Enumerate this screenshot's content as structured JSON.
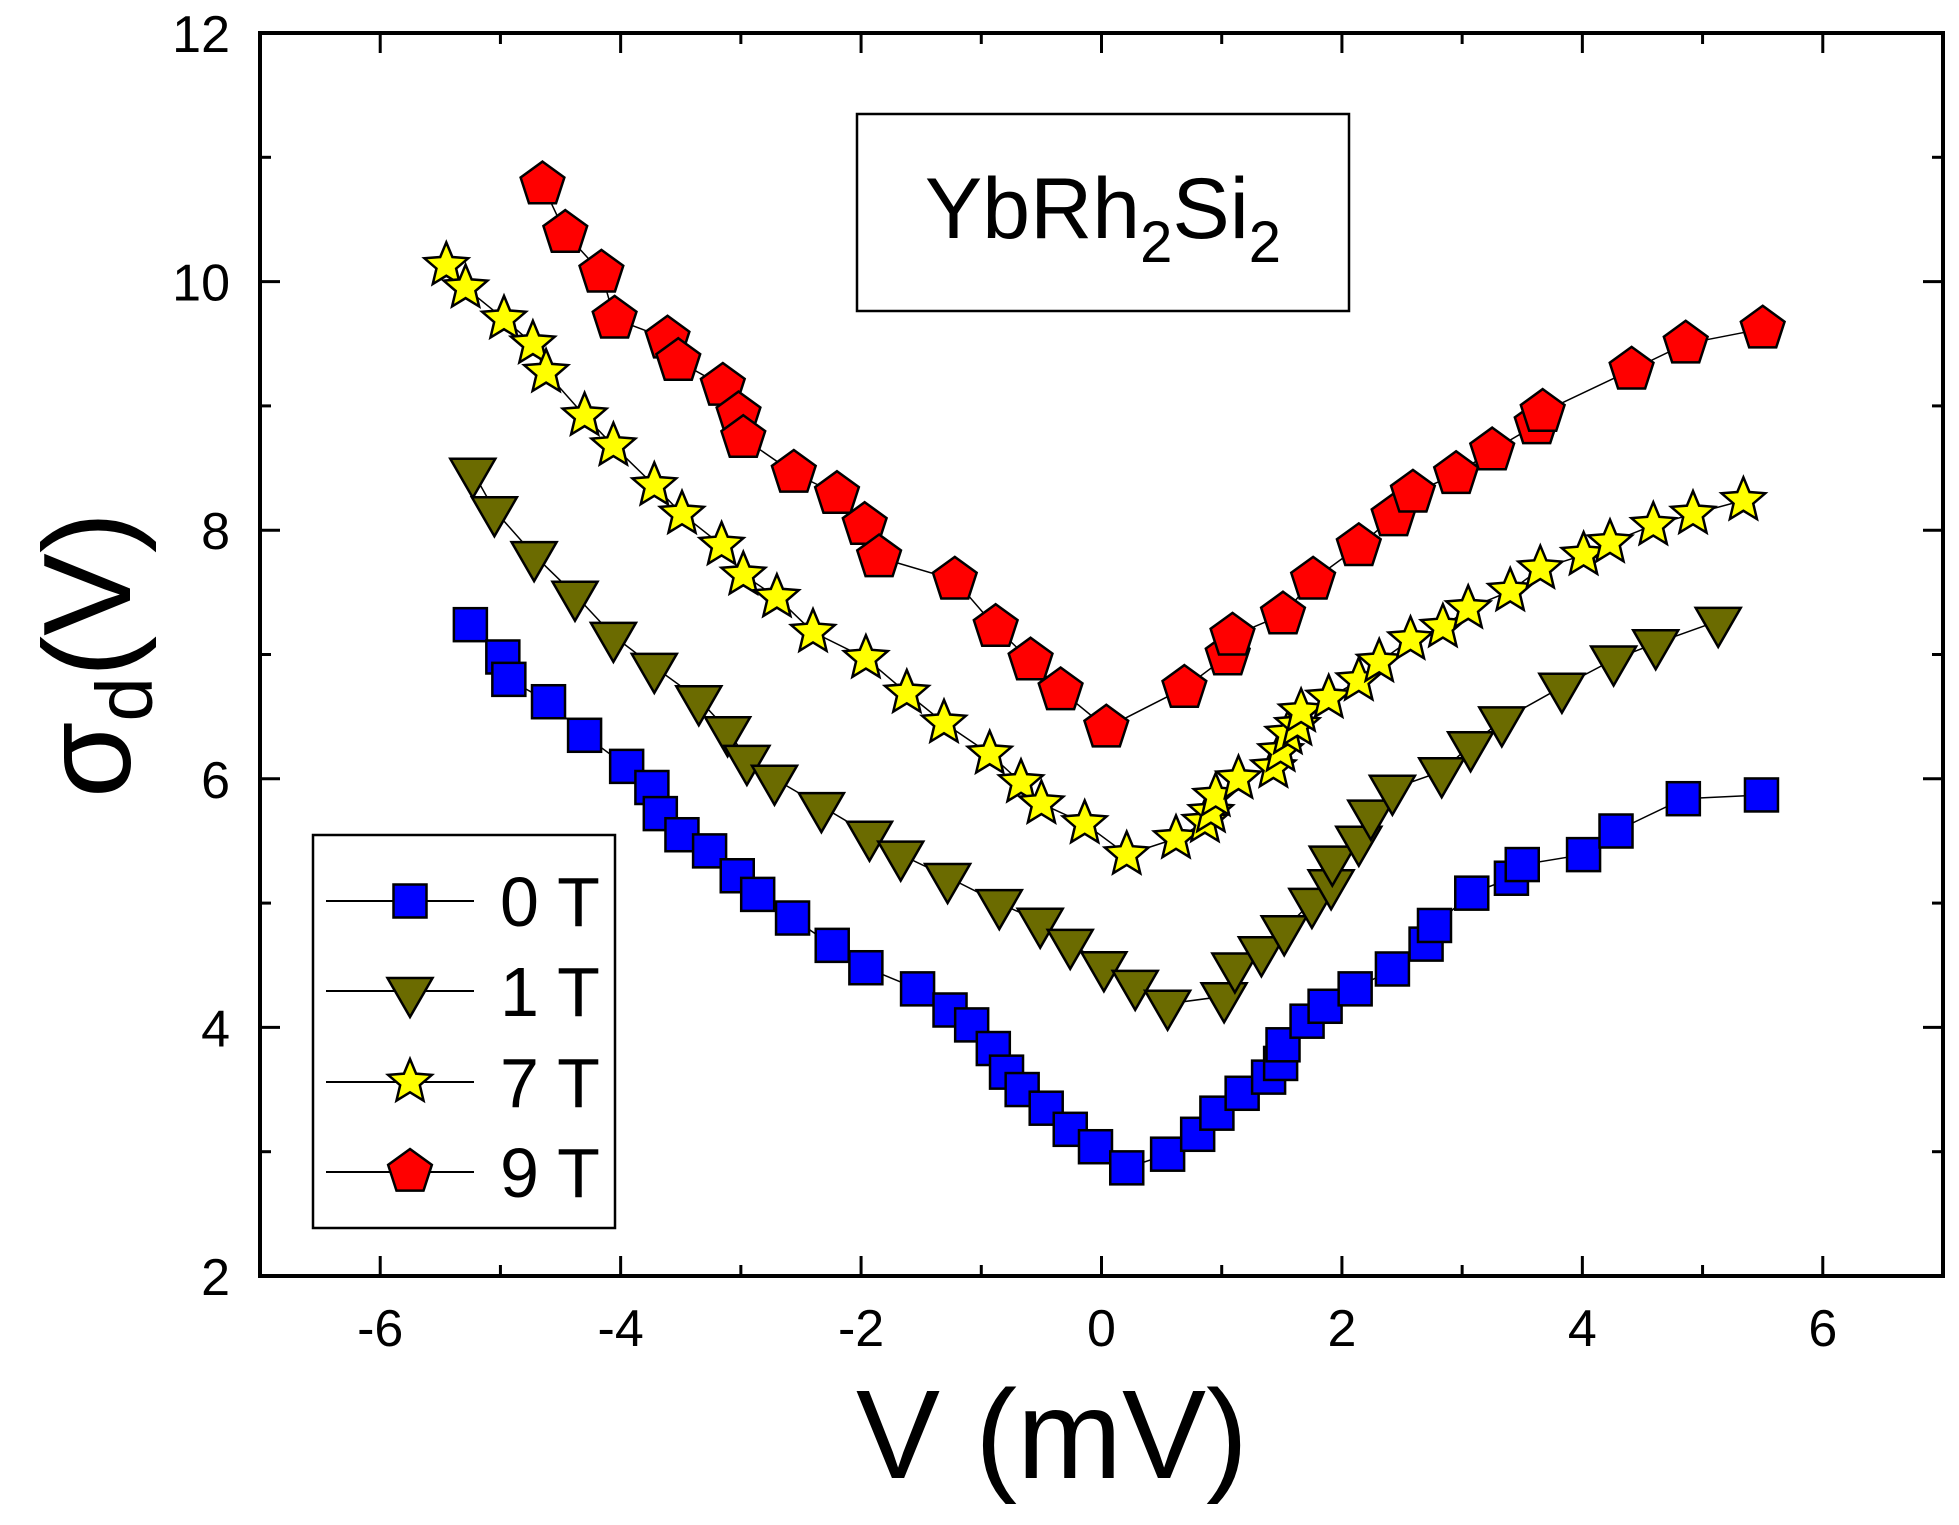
{
  "chart_data": {
    "type": "scatter",
    "title": "",
    "xlabel": "V (mV)",
    "ylabel": {
      "main": "σ",
      "sub": "d",
      "rest": "(V)"
    },
    "xlim": [
      -7,
      7
    ],
    "ylim": [
      2,
      12
    ],
    "xticks": [
      -6,
      -4,
      -2,
      0,
      2,
      4,
      6
    ],
    "yticks": [
      2,
      4,
      6,
      8,
      10,
      12
    ],
    "grid": false,
    "legend_position": "bottom-left",
    "annotation": {
      "main": "YbRh",
      "sub1": "2",
      "mid": "Si",
      "sub2": "2"
    },
    "series": [
      {
        "name": "0 T",
        "value": "0",
        "unit": "T",
        "marker": "square",
        "color": "#0000ff",
        "x": [
          -5.25,
          -4.98,
          -4.93,
          -4.6,
          -4.3,
          -3.95,
          -3.74,
          -3.67,
          -3.49,
          -3.26,
          -3.03,
          -2.86,
          -2.57,
          -2.24,
          -1.96,
          -1.53,
          -1.26,
          -1.08,
          -0.9,
          -0.79,
          -0.66,
          -0.46,
          -0.26,
          -0.05,
          0.21,
          0.55,
          0.8,
          0.96,
          1.17,
          1.39,
          1.49,
          1.51,
          1.71,
          1.86,
          2.11,
          2.42,
          2.7,
          2.77,
          3.08,
          3.41,
          3.5,
          4.01,
          4.28,
          4.84,
          5.49
        ],
        "y": [
          7.24,
          6.98,
          6.8,
          6.62,
          6.35,
          6.1,
          5.93,
          5.72,
          5.55,
          5.42,
          5.22,
          5.07,
          4.88,
          4.66,
          4.48,
          4.31,
          4.14,
          4.02,
          3.83,
          3.64,
          3.5,
          3.35,
          3.18,
          3.04,
          2.87,
          2.98,
          3.14,
          3.31,
          3.47,
          3.6,
          3.71,
          3.86,
          4.05,
          4.17,
          4.31,
          4.47,
          4.67,
          4.82,
          5.08,
          5.2,
          5.31,
          5.39,
          5.58,
          5.84,
          5.87
        ]
      },
      {
        "name": "1 T",
        "value": "1",
        "unit": "T",
        "marker": "triangle-down",
        "color": "#6b6b00",
        "x": [
          -5.23,
          -5.05,
          -4.72,
          -4.38,
          -4.06,
          -3.72,
          -3.35,
          -3.11,
          -2.95,
          -2.72,
          -2.33,
          -1.93,
          -1.67,
          -1.28,
          -0.85,
          -0.51,
          -0.26,
          0.02,
          0.28,
          0.55,
          1.02,
          1.11,
          1.33,
          1.52,
          1.75,
          1.91,
          1.92,
          2.14,
          2.24,
          2.42,
          2.83,
          3.07,
          3.33,
          3.83,
          4.26,
          4.61,
          5.13
        ],
        "y": [
          8.47,
          8.16,
          7.8,
          7.48,
          7.15,
          6.9,
          6.64,
          6.39,
          6.16,
          6.0,
          5.78,
          5.55,
          5.39,
          5.21,
          5.0,
          4.85,
          4.68,
          4.5,
          4.35,
          4.19,
          4.25,
          4.49,
          4.62,
          4.79,
          5.01,
          5.16,
          5.35,
          5.51,
          5.72,
          5.92,
          6.06,
          6.27,
          6.47,
          6.74,
          6.96,
          7.09,
          7.27
        ]
      },
      {
        "name": "7 T",
        "value": "7",
        "unit": "T",
        "marker": "star",
        "color": "#ffff00",
        "x": [
          -5.45,
          -5.29,
          -4.97,
          -4.73,
          -4.62,
          -4.3,
          -4.06,
          -3.72,
          -3.49,
          -3.16,
          -2.98,
          -2.7,
          -2.4,
          -1.96,
          -1.62,
          -1.31,
          -0.93,
          -0.67,
          -0.5,
          -0.14,
          0.21,
          0.62,
          0.86,
          0.91,
          0.95,
          1.14,
          1.43,
          1.49,
          1.55,
          1.63,
          1.66,
          1.89,
          2.14,
          2.31,
          2.57,
          2.84,
          3.05,
          3.4,
          3.65,
          4.01,
          4.23,
          4.59,
          4.92,
          5.34
        ],
        "y": [
          10.13,
          9.95,
          9.7,
          9.5,
          9.27,
          8.92,
          8.68,
          8.36,
          8.13,
          7.88,
          7.64,
          7.46,
          7.18,
          6.97,
          6.69,
          6.45,
          6.2,
          5.97,
          5.8,
          5.64,
          5.39,
          5.52,
          5.65,
          5.73,
          5.86,
          6.0,
          6.09,
          6.22,
          6.36,
          6.43,
          6.54,
          6.65,
          6.79,
          6.94,
          7.12,
          7.22,
          7.37,
          7.51,
          7.69,
          7.8,
          7.9,
          8.04,
          8.13,
          8.24
        ]
      },
      {
        "name": "9 T",
        "value": "9",
        "unit": "T",
        "marker": "pentagon",
        "color": "#ff0000",
        "x": [
          -4.65,
          -4.46,
          -4.16,
          -4.05,
          -3.61,
          -3.52,
          -3.15,
          -3.02,
          -2.98,
          -2.56,
          -2.2,
          -1.97,
          -1.85,
          -1.22,
          -0.88,
          -0.59,
          -0.34,
          0.04,
          0.69,
          1.05,
          1.09,
          1.51,
          1.76,
          2.14,
          2.43,
          2.59,
          2.95,
          3.25,
          3.62,
          3.67,
          4.41,
          4.86,
          5.5
        ],
        "y": [
          10.78,
          10.39,
          10.07,
          9.7,
          9.54,
          9.36,
          9.16,
          8.93,
          8.74,
          8.46,
          8.29,
          8.04,
          7.78,
          7.6,
          7.22,
          6.95,
          6.71,
          6.41,
          6.73,
          6.99,
          7.15,
          7.32,
          7.6,
          7.87,
          8.11,
          8.3,
          8.45,
          8.64,
          8.85,
          8.95,
          9.29,
          9.5,
          9.62
        ]
      }
    ]
  }
}
